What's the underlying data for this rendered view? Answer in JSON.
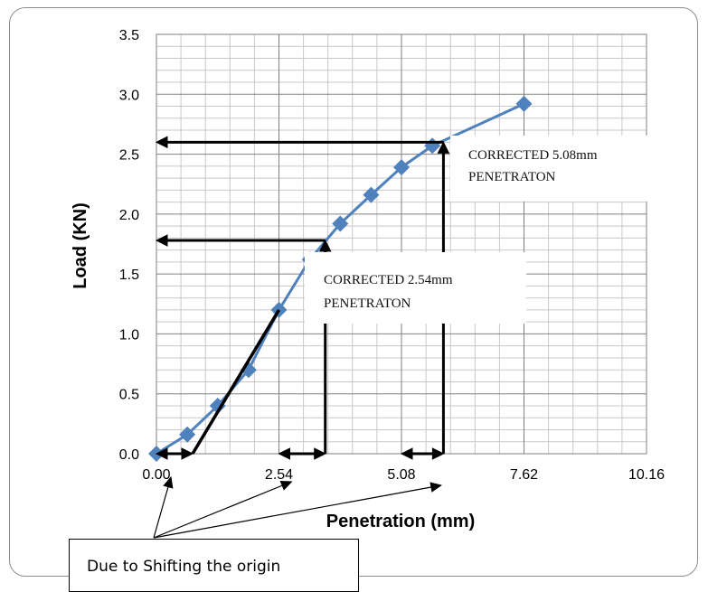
{
  "chart_data": {
    "type": "line",
    "xlabel": "Penetration (mm)",
    "ylabel": "Load (KN)",
    "xlim": [
      0,
      10.16
    ],
    "ylim": [
      0,
      3.5
    ],
    "x_ticks": [
      "0.00",
      "2.54",
      "5.08",
      "7.62",
      "10.16"
    ],
    "y_ticks": [
      "0.0",
      "0.5",
      "1.0",
      "1.5",
      "2.0",
      "2.5",
      "3.0",
      "3.5"
    ],
    "grid": true,
    "minor_grid": true,
    "series": [
      {
        "color": "#4f81bd",
        "marker": "diamond",
        "x": [
          0,
          0.64,
          1.27,
          1.91,
          2.54,
          3.18,
          3.81,
          4.45,
          5.08,
          5.72,
          7.62
        ],
        "y": [
          0,
          0.16,
          0.4,
          0.7,
          1.2,
          1.62,
          1.92,
          2.16,
          2.39,
          2.57,
          2.92
        ]
      }
    ],
    "annotations": [
      {
        "text_lines": [
          "CORRECTED 5.08mm",
          "PENETRATON"
        ],
        "x": 5.95,
        "y": 2.6
      },
      {
        "text_lines": [
          "CORRECTED 2.54mm",
          "PENETRATON"
        ],
        "x": 3.5,
        "y": 1.78
      }
    ],
    "note": "Due to Shifting the origin"
  }
}
